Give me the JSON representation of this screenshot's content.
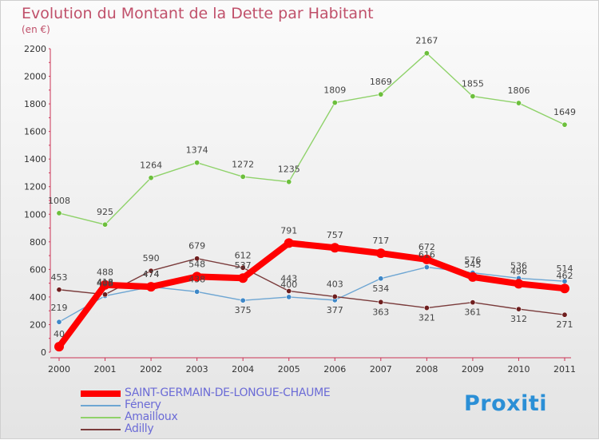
{
  "logo": {
    "text": "Proxiti"
  },
  "chart_data": {
    "type": "line",
    "title": "Evolution du Montant de la Dette par Habitant",
    "subtitle": "(en €)",
    "categories": [
      "2000",
      "2001",
      "2002",
      "2003",
      "2004",
      "2005",
      "2006",
      "2007",
      "2008",
      "2009",
      "2010",
      "2011"
    ],
    "ylim": [
      0,
      2200
    ],
    "yticks": [
      0,
      200,
      400,
      600,
      800,
      1000,
      1200,
      1400,
      1600,
      1800,
      2000,
      2200
    ],
    "legend_position": "bottom-left",
    "series": [
      {
        "name": "Amailloux",
        "color": "#8fd26a",
        "dot": "#6cbf3c",
        "width": 1.4,
        "values": [
          1008,
          925,
          1264,
          1374,
          1272,
          1235,
          1809,
          1869,
          2167,
          1855,
          1806,
          1649
        ]
      },
      {
        "name": "Fénery",
        "color": "#6ea6d3",
        "dot": "#3f88c8",
        "width": 1.4,
        "values": [
          219,
          408,
          474,
          438,
          375,
          400,
          377,
          534,
          616,
          576,
          536,
          514
        ]
      },
      {
        "name": "Adilly",
        "color": "#7a3b3b",
        "dot": "#6e1e1e",
        "width": 1.4,
        "values": [
          453,
          418,
          590,
          679,
          612,
          443,
          403,
          363,
          321,
          361,
          312,
          271
        ]
      },
      {
        "name": "SAINT-GERMAIN-DE-LONGUE-CHAUME",
        "color": "#ff0000",
        "dot": "#ff0000",
        "width": 8,
        "values": [
          40,
          488,
          474,
          548,
          537,
          791,
          757,
          717,
          672,
          545,
          496,
          462
        ]
      }
    ],
    "legend_order": [
      "SAINT-GERMAIN-DE-LONGUE-CHAUME",
      "Fénery",
      "Amailloux",
      "Adilly"
    ]
  }
}
